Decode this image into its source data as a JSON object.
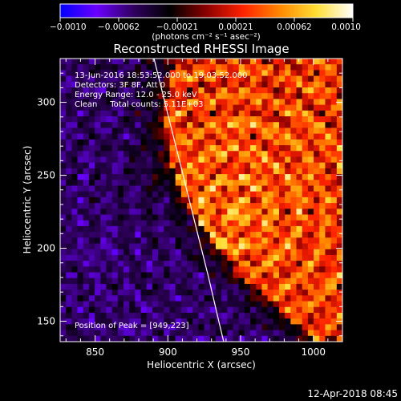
{
  "colorbar": {
    "ticks": [
      "−0.0010",
      "−0.00062",
      "−0.00021",
      "0.00021",
      "0.00062",
      "0.0010"
    ],
    "unit_label": "(photons cm⁻² s⁻¹ asec⁻²)"
  },
  "chart_data": {
    "type": "heatmap",
    "title": "Reconstructed RHESSI Image",
    "xlabel": "Heliocentric X (arcsec)",
    "ylabel": "Heliocentric Y (arcsec)",
    "xlim": [
      826,
      1020
    ],
    "ylim": [
      136,
      330
    ],
    "xticks": [
      850,
      900,
      950,
      1000
    ],
    "yticks": [
      150,
      200,
      250,
      300
    ],
    "value_range": [
      -0.001,
      0.001
    ],
    "colormap": [
      "#0000ff",
      "#6a00ff",
      "#300060",
      "#000000",
      "#8b0000",
      "#ff2200",
      "#ff8800",
      "#ffdd33",
      "#ffffff"
    ],
    "limb_curve_color": "#ffffff",
    "annotations": {
      "time_range": "13-Jun-2016 18:53:52.000 to 19:03:52.000",
      "detectors": "Detectors: 3F 8F, Att 0",
      "energy_range": "Energy Range: 12.0 - 25.0 keV",
      "method_counts": "Clean     Total counts: 5.11E+03",
      "peak": "Position of Peak = [949,223]"
    }
  },
  "timestamp": "12-Apr-2018 08:45"
}
